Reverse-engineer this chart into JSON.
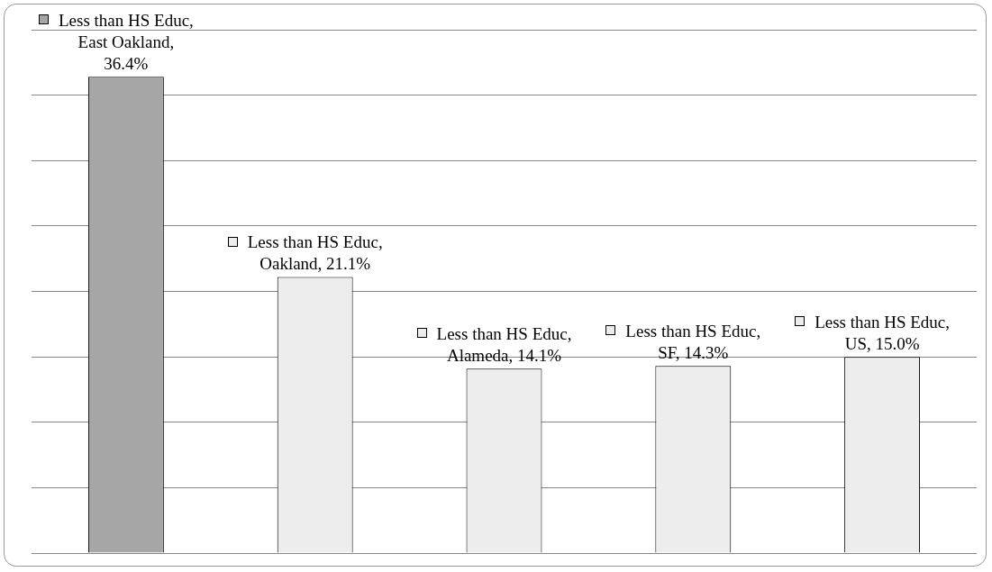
{
  "chart_data": {
    "type": "bar",
    "categories": [
      null,
      null,
      null,
      null,
      null
    ],
    "values": [
      36.4,
      21.1,
      14.1,
      14.3,
      15.0
    ],
    "value_labels": [
      "Less than HS Educ, East Oakland, 36.4%",
      "Less than HS Educ, Oakland, 21.1%",
      "Less than HS Educ, Alameda, 14.1%",
      "Less than HS Educ, SF, 14.3%",
      "Less than HS Educ, US, 15.0%"
    ],
    "colors": [
      "#a6a6a6",
      "#ededed",
      "#ededed",
      "#ededed",
      "#ededed"
    ],
    "ylim": [
      0,
      40
    ],
    "yticks": [
      {
        "value": 0,
        "label": null
      },
      {
        "value": 5,
        "label": null
      },
      {
        "value": 10,
        "label": null
      },
      {
        "value": 15,
        "label": null
      },
      {
        "value": 20,
        "label": null
      },
      {
        "value": 25,
        "label": null
      },
      {
        "value": 30,
        "label": null
      },
      {
        "value": 35,
        "label": null
      },
      {
        "value": 40,
        "label": null
      }
    ],
    "grid": "y",
    "legend": false,
    "tick_labels": false
  }
}
